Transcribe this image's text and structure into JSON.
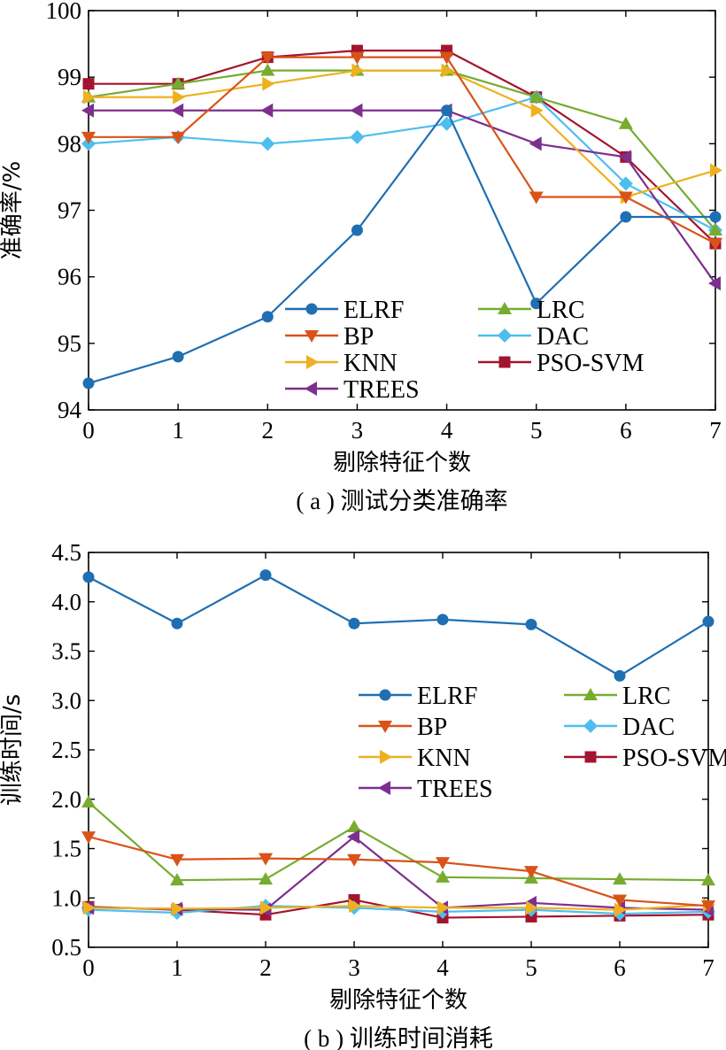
{
  "colors": {
    "ELRF": "#1f6fb2",
    "BP": "#d95319",
    "KNN": "#edb120",
    "TREES": "#7e2f8e",
    "LRC": "#77ac30",
    "DAC": "#4dbeee",
    "PSO-SVM": "#a2142f"
  },
  "chart_data": [
    {
      "type": "line",
      "caption": "( a ) 测试分类准确率",
      "xlabel": "剔除特征个数",
      "ylabel": "准确率/%",
      "x": [
        0,
        1,
        2,
        3,
        4,
        5,
        6,
        7
      ],
      "xlim": [
        0,
        7
      ],
      "ylim": [
        94,
        100
      ],
      "yticks": [
        94,
        95,
        96,
        97,
        98,
        99,
        100
      ],
      "ytick_labels": [
        "94",
        "95",
        "96",
        "97",
        "98",
        "99",
        "100"
      ],
      "legend_position": "lower-center",
      "series": [
        {
          "name": "ELRF",
          "marker": "circle",
          "values": [
            94.4,
            94.8,
            95.4,
            96.7,
            98.5,
            95.6,
            96.9,
            96.9
          ]
        },
        {
          "name": "BP",
          "marker": "triangle-down",
          "values": [
            98.1,
            98.1,
            99.3,
            99.3,
            99.3,
            97.2,
            97.2,
            96.5
          ]
        },
        {
          "name": "KNN",
          "marker": "triangle-right",
          "values": [
            98.7,
            98.7,
            98.9,
            99.1,
            99.1,
            98.5,
            97.2,
            97.6
          ]
        },
        {
          "name": "TREES",
          "marker": "triangle-left",
          "values": [
            98.5,
            98.5,
            98.5,
            98.5,
            98.5,
            98.0,
            97.8,
            95.9
          ]
        },
        {
          "name": "LRC",
          "marker": "triangle-up",
          "values": [
            98.7,
            98.9,
            99.1,
            99.1,
            99.1,
            98.7,
            98.3,
            96.7
          ]
        },
        {
          "name": "DAC",
          "marker": "diamond",
          "values": [
            98.0,
            98.1,
            98.0,
            98.1,
            98.3,
            98.7,
            97.4,
            96.7
          ]
        },
        {
          "name": "PSO-SVM",
          "marker": "square",
          "values": [
            98.9,
            98.9,
            99.3,
            99.4,
            99.4,
            98.7,
            97.8,
            96.5
          ]
        }
      ]
    },
    {
      "type": "line",
      "caption": "( b ) 训练时间消耗",
      "xlabel": "剔除特征个数",
      "ylabel": "训练时间/s",
      "x": [
        0,
        1,
        2,
        3,
        4,
        5,
        6,
        7
      ],
      "xlim": [
        0,
        7
      ],
      "ylim": [
        0.5,
        4.5
      ],
      "yticks": [
        0.5,
        1.0,
        1.5,
        2.0,
        2.5,
        3.0,
        3.5,
        4.0,
        4.5
      ],
      "ytick_labels": [
        "0.5",
        "1.0",
        "1.5",
        "2.0",
        "2.5",
        "3.0",
        "3.5",
        "4.0",
        "4.5"
      ],
      "legend_position": "center-right",
      "series": [
        {
          "name": "ELRF",
          "marker": "circle",
          "values": [
            4.25,
            3.78,
            4.27,
            3.78,
            3.82,
            3.77,
            3.25,
            3.8
          ]
        },
        {
          "name": "BP",
          "marker": "triangle-down",
          "values": [
            1.62,
            1.39,
            1.4,
            1.39,
            1.36,
            1.27,
            0.98,
            0.92
          ]
        },
        {
          "name": "KNN",
          "marker": "triangle-right",
          "values": [
            0.9,
            0.89,
            0.9,
            0.92,
            0.9,
            0.9,
            0.88,
            0.93
          ]
        },
        {
          "name": "TREES",
          "marker": "triangle-left",
          "values": [
            0.9,
            0.89,
            0.88,
            1.62,
            0.9,
            0.95,
            0.9,
            0.88
          ]
        },
        {
          "name": "LRC",
          "marker": "triangle-up",
          "values": [
            1.97,
            1.18,
            1.19,
            1.72,
            1.21,
            1.2,
            1.19,
            1.18
          ]
        },
        {
          "name": "DAC",
          "marker": "diamond",
          "values": [
            0.88,
            0.85,
            0.92,
            0.9,
            0.86,
            0.88,
            0.84,
            0.86
          ]
        },
        {
          "name": "PSO-SVM",
          "marker": "square",
          "values": [
            0.91,
            0.88,
            0.83,
            0.98,
            0.8,
            0.81,
            0.82,
            0.83
          ]
        }
      ]
    }
  ]
}
